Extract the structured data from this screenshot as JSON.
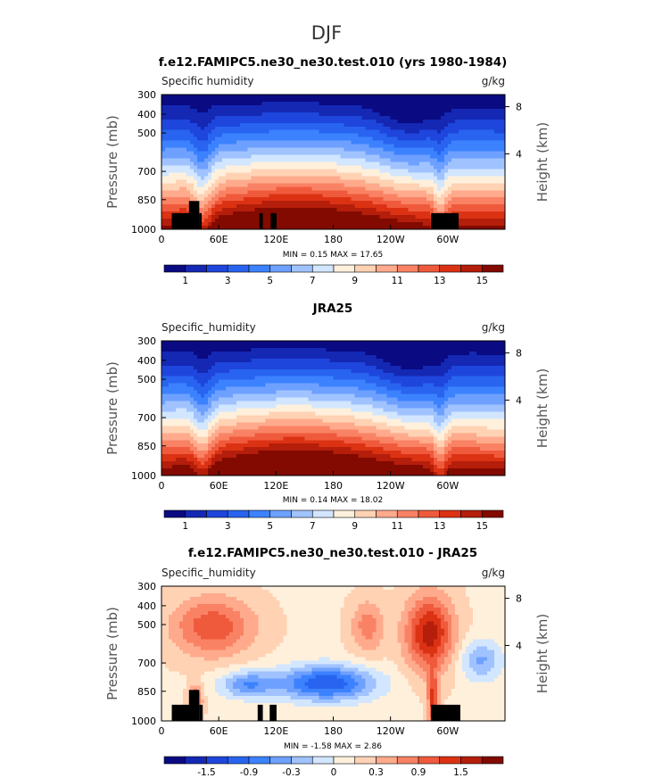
{
  "page_title": "DJF",
  "cbar_colors": [
    "#0a0a82",
    "#1428b4",
    "#1e46dc",
    "#2864f0",
    "#3c82ff",
    "#6ea0ff",
    "#a0c3ff",
    "#d2e6ff",
    "#fff0dc",
    "#ffd2b4",
    "#ffaa8c",
    "#fa8264",
    "#f05a3c",
    "#dc3214",
    "#b41e0a",
    "#820a00"
  ],
  "terrain_color": "#000000",
  "chart_data": [
    {
      "type": "heatmap",
      "id": "model",
      "title": "f.e12.FAMIPC5.ne30_ne30.test.010 (yrs 1980-1984)",
      "variable": "Specific humidity",
      "units": "g/kg",
      "ylabel": "Pressure (mb)",
      "ylabel_right": "Height (km)",
      "yticks": [
        "300",
        "400",
        "500",
        "700",
        "850",
        "1000"
      ],
      "yticks_right": [
        "8",
        "4"
      ],
      "xticks": [
        "0",
        "60E",
        "120E",
        "180",
        "120W",
        "60W"
      ],
      "stats": "MIN =    0.15   MAX =   17.65",
      "cbar_labels": [
        "1",
        "3",
        "5",
        "7",
        "9",
        "11",
        "13",
        "15"
      ],
      "levels": [
        1,
        2,
        3,
        4,
        5,
        6,
        7,
        8,
        9,
        10,
        11,
        12,
        13,
        14,
        15
      ],
      "min": 0.15,
      "max": 17.65,
      "show_terrain": true
    },
    {
      "type": "heatmap",
      "id": "obs",
      "title": "JRA25",
      "variable": "Specific_humidity",
      "units": "g/kg",
      "ylabel": "Pressure (mb)",
      "ylabel_right": "Height (km)",
      "yticks": [
        "300",
        "400",
        "500",
        "700",
        "850",
        "1000"
      ],
      "yticks_right": [
        "8",
        "4"
      ],
      "xticks": [
        "0",
        "60E",
        "120E",
        "180",
        "120W",
        "60W"
      ],
      "stats": "MIN =    0.14   MAX =   18.02",
      "cbar_labels": [
        "1",
        "3",
        "5",
        "7",
        "9",
        "11",
        "13",
        "15"
      ],
      "levels": [
        1,
        2,
        3,
        4,
        5,
        6,
        7,
        8,
        9,
        10,
        11,
        12,
        13,
        14,
        15
      ],
      "min": 0.14,
      "max": 18.02,
      "show_terrain": false
    },
    {
      "type": "heatmap",
      "id": "diff",
      "title": "f.e12.FAMIPC5.ne30_ne30.test.010 - JRA25",
      "variable": "Specific_humidity",
      "units": "g/kg",
      "ylabel": "Pressure (mb)",
      "ylabel_right": "Height (km)",
      "yticks": [
        "300",
        "400",
        "500",
        "700",
        "850",
        "1000"
      ],
      "yticks_right": [
        "8",
        "4"
      ],
      "xticks": [
        "0",
        "60E",
        "120E",
        "180",
        "120W",
        "60W"
      ],
      "stats": "MIN =   -1.58   MAX =    2.86",
      "cbar_labels": [
        "-1.5",
        "-0.9",
        "-0.3",
        "0",
        "0.3",
        "0.9",
        "1.5"
      ],
      "levels": [
        -2.1,
        -1.8,
        -1.5,
        -1.2,
        -0.9,
        -0.6,
        -0.3,
        0,
        0.3,
        0.6,
        0.9,
        1.2,
        1.5,
        1.8,
        2.1
      ],
      "min": -1.58,
      "max": 2.86,
      "show_terrain": true
    }
  ]
}
